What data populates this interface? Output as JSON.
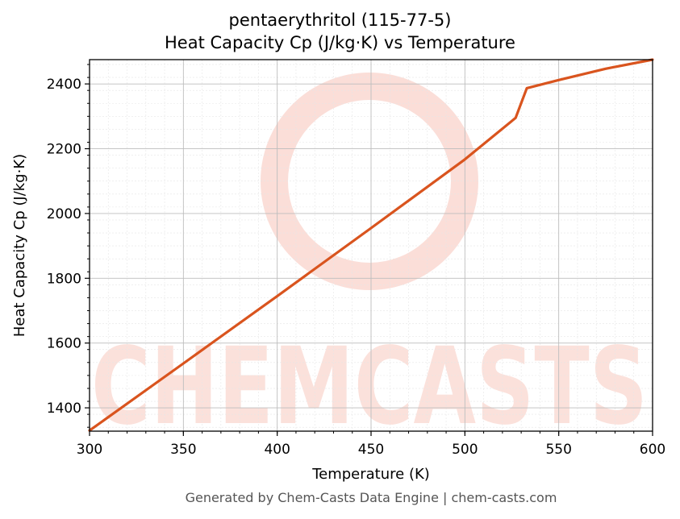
{
  "chart_data": {
    "type": "line",
    "title": "pentaerythritol (115-77-5)",
    "subtitle": "Heat Capacity Cp (J/kg·K) vs Temperature",
    "xlabel": "Temperature (K)",
    "ylabel": "Heat Capacity Cp (J/kg·K)",
    "xlim": [
      300,
      600
    ],
    "ylim": [
      1328,
      2475
    ],
    "xticks": [
      300,
      350,
      400,
      450,
      500,
      550,
      600
    ],
    "yticks": [
      1400,
      1600,
      1800,
      2000,
      2200,
      2400
    ],
    "grid": true,
    "minor_grid": true,
    "series": [
      {
        "color": "#d9541e",
        "x": [
          300,
          350,
          400,
          450,
          500,
          527,
          533,
          550,
          575,
          600
        ],
        "y": [
          1330,
          1537,
          1745,
          1955,
          2167,
          2295,
          2387,
          2412,
          2447,
          2475
        ]
      }
    ]
  },
  "watermark": {
    "text": "CHEMCASTS",
    "color": "#f7b5a8"
  },
  "footer": "Generated by Chem-Casts Data Engine | chem-casts.com"
}
